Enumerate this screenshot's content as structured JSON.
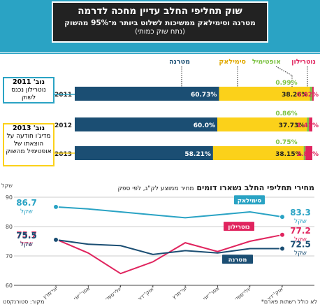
{
  "header": {
    "title": "שוק תחליפי החלב עדיין מחכה לדרמה",
    "subtitle": "מטרנה וסימילאק ממשיכות לשלוט ביותר מ־95% מהשוק",
    "note": "(נתח שוק כמותי)"
  },
  "callouts": {
    "c2011": {
      "title": "נוב' 2011",
      "text": "נוטרילון נכנס לשוק"
    },
    "c2013": {
      "title": "נוב' 2013",
      "text": "מדיג'ו חודעה על הוצאתו של אופטימיל מהשוק"
    }
  },
  "bars": {
    "legend": [
      "מטרנה",
      "סימילאק",
      "אופטימיל",
      "נוטרילון"
    ],
    "years": [
      "2011",
      "2012",
      "2013"
    ],
    "materna_labels": [
      "60.73%",
      "60.0%",
      "58.21%"
    ],
    "similac_labels": [
      "38.26%",
      "37.73%",
      "38.15%"
    ],
    "optimil_labels": [
      "0.99%",
      "0.86%",
      "0.75%"
    ],
    "nutrilon_labels": [
      "0.02%",
      "1.41%",
      "2.89%"
    ]
  },
  "chart_data": [
    {
      "type": "bar",
      "categories": [
        "2011",
        "2012",
        "2013"
      ],
      "series": [
        {
          "name": "מטרנה",
          "values": [
            60.73,
            60.0,
            58.21
          ]
        },
        {
          "name": "סימילאק",
          "values": [
            38.26,
            37.73,
            38.15
          ]
        },
        {
          "name": "אופטימיל",
          "values": [
            0.99,
            0.86,
            0.75
          ]
        },
        {
          "name": "נוטרילון",
          "values": [
            0.02,
            1.41,
            2.89
          ]
        }
      ],
      "stacked": true,
      "ylim": [
        0,
        100
      ]
    },
    {
      "type": "line",
      "title": "מחירי תחליפי החלב נשארו דומים",
      "subtitle": "מחיר ממוצע לק\"ג, לפי ספק",
      "ylabel": "שקל",
      "ylim": [
        60,
        90
      ],
      "yticks": [
        "90",
        "80",
        "70",
        "60"
      ],
      "categories": [
        "יוני־מרץ 2012",
        "אפר'־יוני",
        "יולי־ספט'",
        "אוק'־דצמ'",
        "יוני־מרץ 2013",
        "אפר'־יוני",
        "יולי־ספט'",
        "אוק'־דצמ'"
      ],
      "x_labels": [
        "יוני־מרץ",
        "אפר'־יוני",
        "יולי־ספט'",
        "אוק'־דצמ'",
        "יוני־מרץ",
        "אפר'־יוני",
        "יולי־ספט'",
        "אוק'־דצמ'"
      ],
      "x_years": [
        "2012",
        "2013"
      ],
      "series": [
        {
          "name": "סימילאק",
          "color": "#2aa3c4",
          "values": [
            86.7,
            86.0,
            85.0,
            84.0,
            83.0,
            84.0,
            85.0,
            83.3
          ],
          "start_label": "86.7",
          "end_label": "83.3"
        },
        {
          "name": "נוטרילון",
          "color": "#e0245e",
          "values": [
            75.7,
            71.0,
            64.0,
            68.0,
            74.5,
            71.5,
            75.0,
            77.2
          ],
          "start_label": "75.7",
          "end_label": "77.2"
        },
        {
          "name": "מטרנה",
          "color": "#1b4e73",
          "values": [
            75.5,
            74.0,
            73.5,
            70.5,
            71.8,
            71.0,
            72.5,
            72.5
          ],
          "start_label": "75.5",
          "end_label": "72.5"
        }
      ],
      "value_unit": "שקל"
    }
  ],
  "footer": {
    "source": "מקור: סטורנקסט",
    "note": "*לא כולל רשתות פארם"
  },
  "colors": {
    "materna": "#1b4e73",
    "similac": "#fbd11a",
    "optimil": "#7cc242",
    "nutrilon": "#e0245e",
    "accent": "#2aa3c4"
  }
}
